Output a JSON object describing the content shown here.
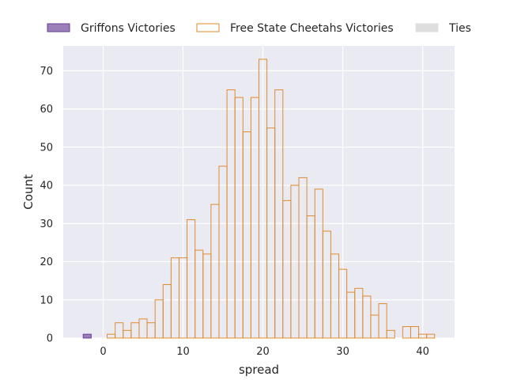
{
  "chart_data": {
    "type": "histogram",
    "xlabel": "spread",
    "ylabel": "Count",
    "xlim": [
      -5,
      44
    ],
    "ylim": [
      0,
      76.5
    ],
    "x_ticks": [
      0,
      10,
      20,
      30,
      40
    ],
    "y_ticks": [
      0,
      10,
      20,
      30,
      40,
      50,
      60,
      70
    ],
    "grid": true,
    "legend_position": "top",
    "series": [
      {
        "name": "Griffons Victories",
        "color": "#9b7fb8",
        "edge_color": "#6a3d9a",
        "style": "filled",
        "bins": [
          {
            "x0": -2.5,
            "x1": -1.5,
            "count": 1
          }
        ]
      },
      {
        "name": "Free State Cheetahs Victories",
        "color": "none",
        "edge_color": "#e08b2e",
        "style": "outline",
        "bins": [
          {
            "x0": 0.5,
            "x1": 1.5,
            "count": 1
          },
          {
            "x0": 1.5,
            "x1": 2.5,
            "count": 4
          },
          {
            "x0": 2.5,
            "x1": 3.5,
            "count": 2
          },
          {
            "x0": 3.5,
            "x1": 4.5,
            "count": 4
          },
          {
            "x0": 4.5,
            "x1": 5.5,
            "count": 5
          },
          {
            "x0": 5.5,
            "x1": 6.5,
            "count": 4
          },
          {
            "x0": 6.5,
            "x1": 7.5,
            "count": 10
          },
          {
            "x0": 7.5,
            "x1": 8.5,
            "count": 14
          },
          {
            "x0": 8.5,
            "x1": 9.5,
            "count": 21
          },
          {
            "x0": 9.5,
            "x1": 10.5,
            "count": 21
          },
          {
            "x0": 10.5,
            "x1": 11.5,
            "count": 31
          },
          {
            "x0": 11.5,
            "x1": 12.5,
            "count": 23
          },
          {
            "x0": 12.5,
            "x1": 13.5,
            "count": 22
          },
          {
            "x0": 13.5,
            "x1": 14.5,
            "count": 35
          },
          {
            "x0": 14.5,
            "x1": 15.5,
            "count": 45
          },
          {
            "x0": 15.5,
            "x1": 16.5,
            "count": 65
          },
          {
            "x0": 16.5,
            "x1": 17.5,
            "count": 63
          },
          {
            "x0": 17.5,
            "x1": 18.5,
            "count": 54
          },
          {
            "x0": 18.5,
            "x1": 19.5,
            "count": 63
          },
          {
            "x0": 19.5,
            "x1": 20.5,
            "count": 73
          },
          {
            "x0": 20.5,
            "x1": 21.5,
            "count": 55
          },
          {
            "x0": 21.5,
            "x1": 22.5,
            "count": 65
          },
          {
            "x0": 22.5,
            "x1": 23.5,
            "count": 36
          },
          {
            "x0": 23.5,
            "x1": 24.5,
            "count": 40
          },
          {
            "x0": 24.5,
            "x1": 25.5,
            "count": 42
          },
          {
            "x0": 25.5,
            "x1": 26.5,
            "count": 32
          },
          {
            "x0": 26.5,
            "x1": 27.5,
            "count": 39
          },
          {
            "x0": 27.5,
            "x1": 28.5,
            "count": 28
          },
          {
            "x0": 28.5,
            "x1": 29.5,
            "count": 22
          },
          {
            "x0": 29.5,
            "x1": 30.5,
            "count": 18
          },
          {
            "x0": 30.5,
            "x1": 31.5,
            "count": 12
          },
          {
            "x0": 31.5,
            "x1": 32.5,
            "count": 13
          },
          {
            "x0": 32.5,
            "x1": 33.5,
            "count": 11
          },
          {
            "x0": 33.5,
            "x1": 34.5,
            "count": 6
          },
          {
            "x0": 34.5,
            "x1": 35.5,
            "count": 9
          },
          {
            "x0": 35.5,
            "x1": 36.5,
            "count": 2
          },
          {
            "x0": 37.5,
            "x1": 38.5,
            "count": 3
          },
          {
            "x0": 38.5,
            "x1": 39.5,
            "count": 3
          },
          {
            "x0": 39.5,
            "x1": 40.5,
            "count": 1
          },
          {
            "x0": 40.5,
            "x1": 41.5,
            "count": 1
          }
        ]
      },
      {
        "name": "Ties",
        "color": "#dedede",
        "edge_color": "#dedede",
        "style": "filled",
        "bins": []
      }
    ]
  },
  "colors": {
    "plot_background": "#eaeaf2",
    "grid": "#ffffff",
    "text": "#262626"
  }
}
